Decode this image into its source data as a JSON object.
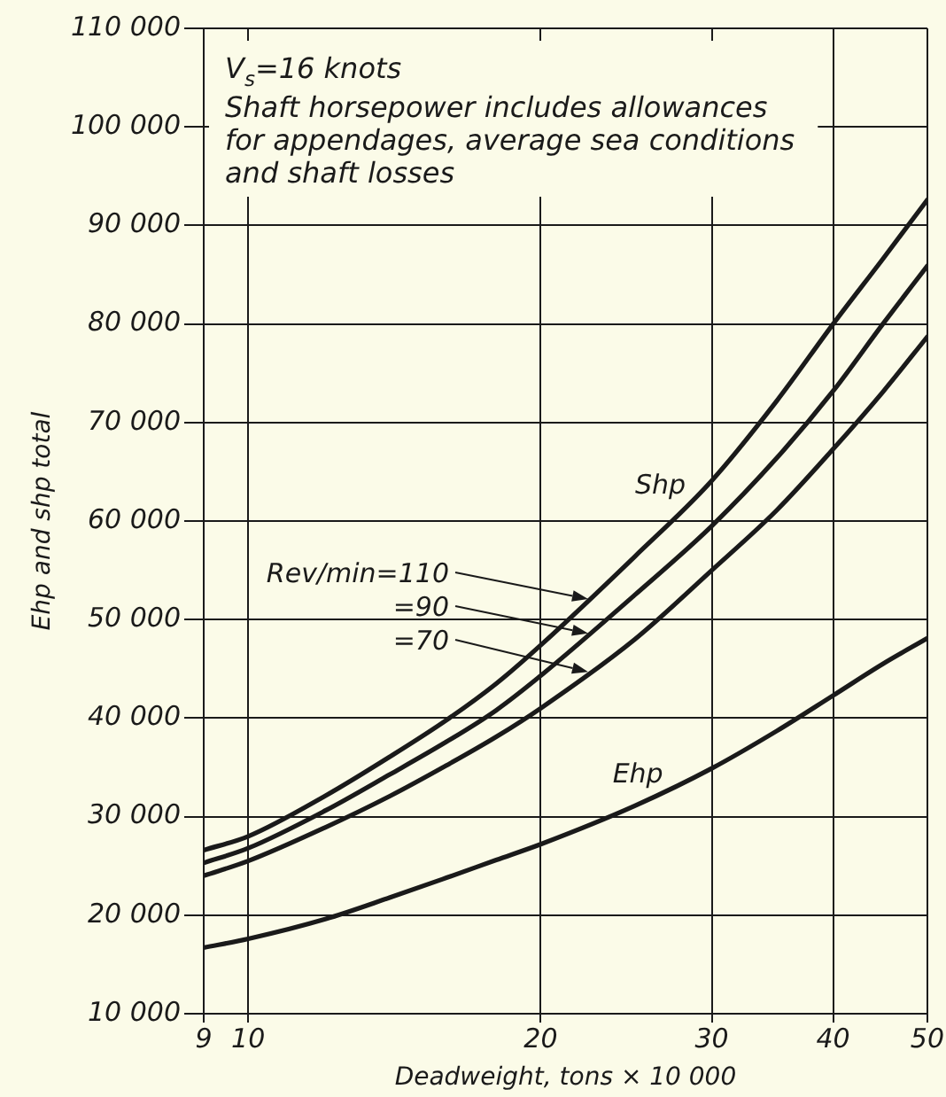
{
  "chart_data": {
    "type": "line",
    "xlabel": "Deadweight, tons × 10 000",
    "ylabel": "Ehp and shp total",
    "annotations": [
      "V$_{s}$=16 knots",
      "Shaft horsepower includes allowances for appendages, average sea conditions and shaft losses",
      "Shp"
    ],
    "x": [
      9,
      10,
      12,
      14,
      16,
      18,
      20,
      25,
      30,
      35,
      40,
      45,
      50
    ],
    "series": [
      {
        "name": "Rev/min=110",
        "color": "#1a1a1a",
        "values": [
          26600,
          28000,
          32100,
          36100,
          39800,
          43500,
          47400,
          56400,
          64100,
          72200,
          80000,
          86600,
          92600
        ]
      },
      {
        "name": "=90",
        "color": "#1a1a1a",
        "values": [
          25300,
          26800,
          30600,
          34300,
          37600,
          40800,
          44300,
          52500,
          59500,
          66400,
          73200,
          80000,
          85900
        ]
      },
      {
        "name": "=70",
        "color": "#1a1a1a",
        "values": [
          24000,
          25500,
          28900,
          32100,
          35200,
          38100,
          41000,
          48000,
          55000,
          61100,
          67300,
          73100,
          78700
        ]
      },
      {
        "name": "Ehp",
        "color": "#1a1a1a",
        "values": [
          16700,
          17600,
          19600,
          21800,
          23800,
          25600,
          27200,
          31100,
          34900,
          38700,
          42300,
          45500,
          48100
        ]
      }
    ],
    "xlim": [
      9,
      50
    ],
    "xticks": [
      9,
      10,
      20,
      30,
      40,
      50
    ],
    "ylim": [
      10000,
      110000
    ],
    "yticks": [
      {
        "value": 10000,
        "label": "10 000"
      },
      {
        "value": 20000,
        "label": "20 000"
      },
      {
        "value": 30000,
        "label": "30 000"
      },
      {
        "value": 40000,
        "label": "40 000"
      },
      {
        "value": 50000,
        "label": "50 000"
      },
      {
        "value": 60000,
        "label": "60 000"
      },
      {
        "value": 70000,
        "label": "70 000"
      },
      {
        "value": 80000,
        "label": "80 000"
      },
      {
        "value": 90000,
        "label": "90 000"
      },
      {
        "value": 100000,
        "label": "100 000"
      },
      {
        "value": 110000,
        "label": "110 000"
      }
    ],
    "log": "x",
    "grid": true,
    "legend": "left"
  }
}
